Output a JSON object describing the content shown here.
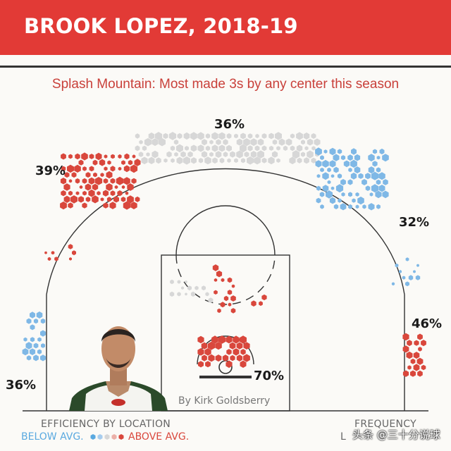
{
  "header": {
    "title": "BROOK LOPEZ, 2018-19"
  },
  "subtitle": "Splash Mountain: Most made 3s by any center this season",
  "zones": {
    "top": "36%",
    "left_wing": "39%",
    "right_wing": "32%",
    "left_corner": "36%",
    "right_corner": "46%",
    "rim": "70%"
  },
  "byline": "By Kirk Goldsberry",
  "legend": {
    "efficiency_label": "EFFICIENCY BY LOCATION",
    "below": "BELOW AVG.",
    "above": "ABOVE AVG.",
    "frequency_label": "FREQUENCY",
    "frequency_sub": "L"
  },
  "watermark": "头条 @三十分说球",
  "colors": {
    "header": "#e23a36",
    "above": "#d9473c",
    "below": "#7fb8e6",
    "neutral": "#d7d7d7"
  }
}
